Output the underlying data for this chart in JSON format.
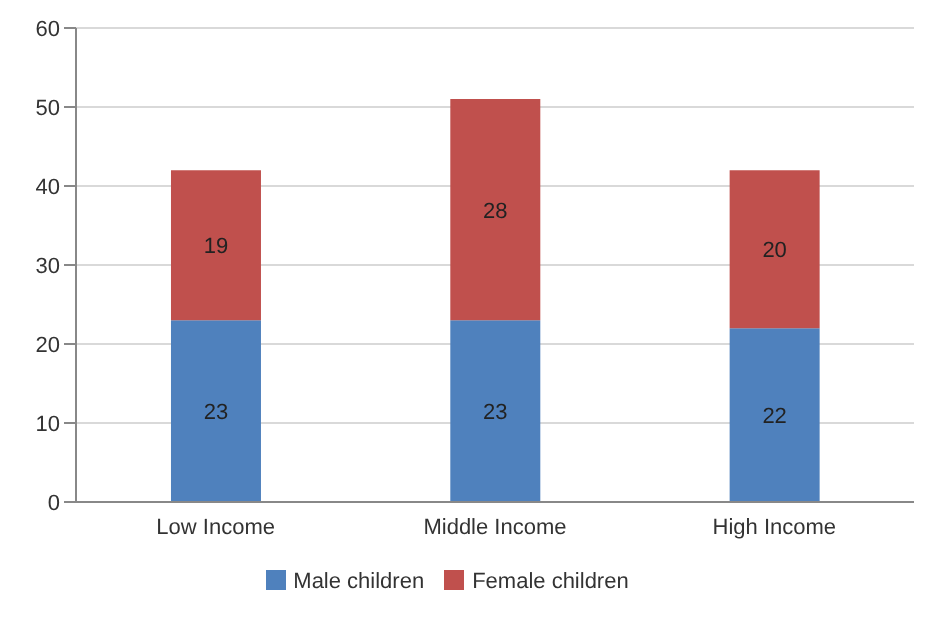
{
  "chart_data": {
    "type": "bar",
    "stacked": true,
    "categories": [
      "Low Income",
      "Middle Income",
      "High Income"
    ],
    "series": [
      {
        "name": "Male children",
        "color": "#4f81bd",
        "values": [
          23,
          23,
          22
        ]
      },
      {
        "name": "Female children",
        "color": "#c0504d",
        "values": [
          19,
          28,
          20
        ]
      }
    ],
    "ylim": [
      0,
      60
    ],
    "yticks": [
      0,
      10,
      20,
      30,
      40,
      50,
      60
    ],
    "grid": "y",
    "legend": "bottom",
    "data_labels": true
  }
}
